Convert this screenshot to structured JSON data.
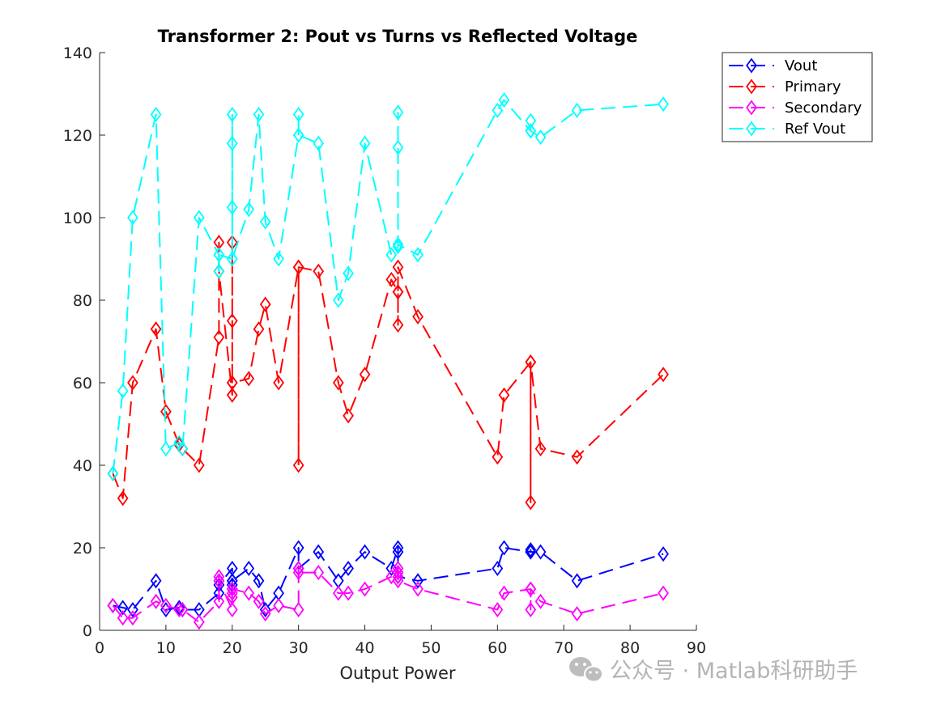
{
  "chart_data": {
    "type": "line",
    "title": "Transformer 2: Pout vs Turns vs Reflected Voltage",
    "xlabel": "Output Power",
    "ylabel": "",
    "xlim": [
      0,
      90
    ],
    "ylim": [
      0,
      140
    ],
    "xticks": [
      "0",
      "10",
      "20",
      "30",
      "40",
      "50",
      "60",
      "70",
      "80",
      "90"
    ],
    "yticks": [
      "0",
      "20",
      "40",
      "60",
      "80",
      "100",
      "120",
      "140"
    ],
    "grid": false,
    "legend_position": "top-right",
    "x": [
      2,
      3.5,
      5,
      8.5,
      10,
      12,
      12.5,
      15,
      18,
      18,
      18,
      20,
      20,
      20,
      20,
      20,
      22.5,
      24,
      25,
      27,
      30,
      30,
      30,
      33,
      36,
      37.5,
      40,
      44,
      45,
      45,
      45,
      45,
      48,
      60,
      61,
      65,
      65,
      65,
      66.5,
      72,
      85
    ],
    "series": [
      {
        "name": "Vout",
        "color": "#0000ff",
        "marker": "diamond",
        "line": "dashed",
        "values": [
          6,
          5.5,
          5,
          12,
          5,
          5.5,
          5,
          5,
          9,
          12,
          11,
          15,
          12,
          10,
          11,
          12,
          15,
          12,
          5,
          9,
          20,
          15,
          15,
          19,
          12,
          15,
          19,
          15,
          20,
          19,
          14,
          13,
          12,
          15,
          20,
          19,
          19.5,
          19,
          19,
          12,
          18.5
        ]
      },
      {
        "name": "Primary",
        "color": "#ff0000",
        "marker": "diamond",
        "line": "dashed",
        "values": [
          38,
          32,
          60,
          73,
          53,
          45,
          44,
          40,
          71,
          94,
          87,
          57,
          75,
          94,
          60,
          60,
          61,
          73,
          79,
          60,
          88,
          40,
          88,
          87,
          60,
          52,
          62,
          85,
          82,
          74,
          82,
          88,
          76,
          42,
          57,
          65,
          31,
          65,
          44,
          42,
          62
        ]
      },
      {
        "name": "Secondary",
        "color": "#ff00ff",
        "marker": "diamond",
        "line": "dashed",
        "values": [
          6,
          3,
          3,
          7,
          6,
          5,
          5,
          2,
          7,
          13,
          12,
          5,
          8,
          10,
          9,
          10,
          9,
          7,
          4,
          6,
          5,
          15,
          14,
          14,
          9,
          9,
          10,
          13,
          15,
          14,
          13,
          12,
          10,
          5,
          9,
          10,
          5,
          10,
          7,
          4,
          9
        ]
      },
      {
        "name": "Ref Vout",
        "color": "#00ffff",
        "marker": "diamond",
        "line": "dashed",
        "values": [
          38,
          58,
          100,
          125,
          44,
          45.5,
          44,
          100,
          91,
          87,
          91,
          90,
          102.5,
          125,
          118,
          90,
          102,
          125,
          99,
          90,
          120,
          125,
          120,
          118,
          80,
          86.5,
          118,
          91,
          93,
          117,
          125.5,
          93.5,
          91,
          126,
          128.5,
          121,
          123.5,
          121,
          119.5,
          126,
          127.5
        ]
      }
    ]
  },
  "watermark": {
    "icon": "wechat-icon",
    "text": "公众号 · Matlab科研助手"
  }
}
